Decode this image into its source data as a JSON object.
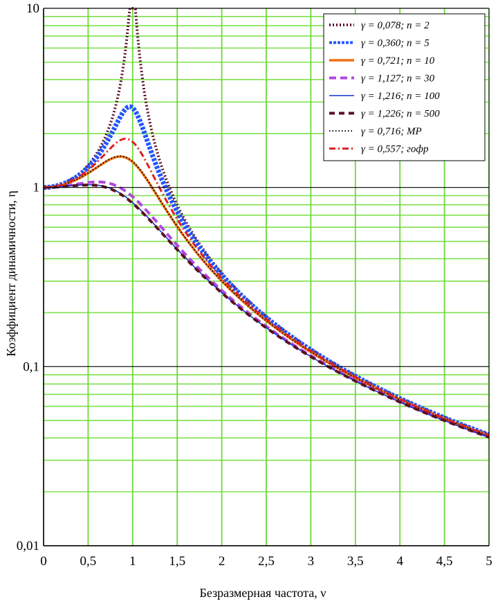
{
  "chart_data": {
    "type": "line",
    "xlabel": "Безразмерная частота, ν",
    "ylabel": "Коэффициент динамичности, η",
    "xlim": [
      0,
      5
    ],
    "ylim": [
      0.01,
      10
    ],
    "yscale": "log",
    "x_ticks": [
      {
        "value": 0,
        "label": "0"
      },
      {
        "value": 0.5,
        "label": "0,5"
      },
      {
        "value": 1,
        "label": "1"
      },
      {
        "value": 1.5,
        "label": "1,5"
      },
      {
        "value": 2,
        "label": "2"
      },
      {
        "value": 2.5,
        "label": "2,5"
      },
      {
        "value": 3,
        "label": "3"
      },
      {
        "value": 3.5,
        "label": "3,5"
      },
      {
        "value": 4,
        "label": "4"
      },
      {
        "value": 4.5,
        "label": "4,5"
      },
      {
        "value": 5,
        "label": "5"
      }
    ],
    "y_ticks": [
      {
        "value": 10,
        "label": "10"
      },
      {
        "value": 1,
        "label": "1"
      },
      {
        "value": 0.1,
        "label": "0,1"
      },
      {
        "value": 0.01,
        "label": "0,01"
      }
    ],
    "grid": true,
    "legend_position": "top-right",
    "series": [
      {
        "name": "γ = 0,078; n = 2",
        "gamma": 0.078,
        "color": "#5a0f2a",
        "style": "plus-dotted"
      },
      {
        "name": "γ = 0,360; n = 5",
        "gamma": 0.36,
        "color": "#2255ff",
        "style": "triangles"
      },
      {
        "name": "γ = 0,721; n = 10",
        "gamma": 0.721,
        "color": "#f07010",
        "style": "solid-thick"
      },
      {
        "name": "γ = 1,127; n = 30",
        "gamma": 1.127,
        "color": "#b046e0",
        "style": "dashed"
      },
      {
        "name": "γ = 1,216; n = 100",
        "gamma": 1.216,
        "color": "#1030d0",
        "style": "solid-thin"
      },
      {
        "name": "γ = 1,226; n = 500",
        "gamma": 1.226,
        "color": "#5a1020",
        "style": "dashed-dark"
      },
      {
        "name": "γ = 0,716; MP",
        "gamma": 0.716,
        "color": "#000000",
        "style": "dotted"
      },
      {
        "name": "γ = 0,557; гофр",
        "gamma": 0.557,
        "color": "#e02020",
        "style": "dashdot"
      }
    ]
  }
}
